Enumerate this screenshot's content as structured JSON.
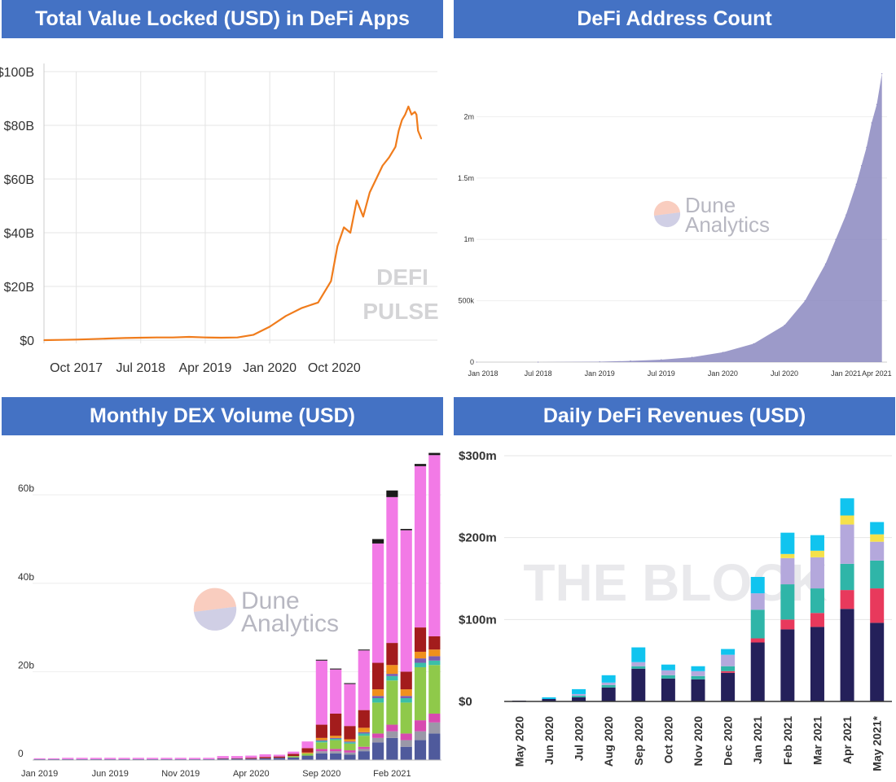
{
  "chart_data": [
    {
      "type": "line",
      "title": "Total Value Locked (USD) in DeFi Apps",
      "color": "#f07c1c",
      "watermark": "DEFI PULSE",
      "y_ticks": [
        "$0",
        "$20B",
        "$40B",
        "$60B",
        "$80B",
        "$100B"
      ],
      "ylim": [
        0,
        100
      ],
      "x_ticks": [
        "Oct 2017",
        "Jul 2018",
        "Apr 2019",
        "Jan 2020",
        "Oct 2020"
      ],
      "x": [
        0,
        0.5,
        1,
        1.5,
        2,
        2.5,
        3,
        3.5,
        4,
        4.5,
        5,
        5.5,
        6,
        6.5,
        7,
        7.5,
        8,
        8.5,
        8.9,
        9.1,
        9.3,
        9.5,
        9.7,
        9.9,
        10.1,
        10.3,
        10.5,
        10.7,
        10.9,
        11,
        11.1,
        11.2,
        11.3,
        11.4,
        11.5,
        11.55,
        11.6,
        11.7
      ],
      "values": [
        0,
        0.1,
        0.2,
        0.4,
        0.6,
        0.8,
        0.9,
        1.0,
        1.0,
        1.2,
        1.0,
        0.9,
        1.0,
        2.0,
        5.0,
        9.0,
        12.0,
        14.0,
        22.0,
        35.0,
        42.0,
        40.0,
        52.0,
        46.0,
        55.0,
        60.0,
        65.0,
        68.0,
        72.0,
        78.0,
        82.0,
        84.0,
        87.0,
        84.0,
        85.0,
        84.0,
        78.0,
        75.0
      ],
      "x_range": [
        0,
        12.2
      ]
    },
    {
      "type": "area",
      "title": "DeFi Address Count",
      "color": "#8b88bf",
      "watermark": [
        "Dune",
        "Analytics"
      ],
      "y_ticks": [
        "0",
        "500k",
        "1m",
        "1.5m",
        "2m"
      ],
      "ylim": [
        0,
        2.5
      ],
      "x_ticks": [
        "Jan 2018",
        "Jul 2018",
        "Jan 2019",
        "Jul 2019",
        "Jan 2020",
        "Jul 2020",
        "Jan 2021",
        "Apr 2021"
      ],
      "x": [
        0,
        6,
        12,
        15,
        18,
        21,
        24,
        27,
        30,
        32,
        34,
        35,
        36,
        37,
        37.5,
        38,
        38.5,
        39,
        39.5
      ],
      "values": [
        0,
        0,
        0.003,
        0.01,
        0.02,
        0.04,
        0.08,
        0.15,
        0.3,
        0.5,
        0.8,
        1.0,
        1.2,
        1.45,
        1.6,
        1.75,
        1.95,
        2.1,
        2.35
      ],
      "x_range": [
        0,
        40
      ]
    },
    {
      "type": "bar",
      "stacked": true,
      "title": "Monthly DEX Volume (USD)",
      "watermark": [
        "Dune",
        "Analytics"
      ],
      "y_ticks": [
        "0",
        "20b",
        "40b",
        "60b"
      ],
      "ylim": [
        0,
        72
      ],
      "x_ticks": [
        "Jan 2019",
        "Jun 2019",
        "Nov 2019",
        "Apr 2020",
        "Sep 2020",
        "Feb 2021"
      ],
      "categories": [
        "Jan 2019",
        "Feb 2019",
        "Mar 2019",
        "Apr 2019",
        "May 2019",
        "Jun 2019",
        "Jul 2019",
        "Aug 2019",
        "Sep 2019",
        "Oct 2019",
        "Nov 2019",
        "Dec 2019",
        "Jan 2020",
        "Feb 2020",
        "Mar 2020",
        "Apr 2020",
        "May 2020",
        "Jun 2020",
        "Jul 2020",
        "Aug 2020",
        "Sep 2020",
        "Oct 2020",
        "Nov 2020",
        "Dec 2020",
        "Jan 2021",
        "Feb 2021",
        "Mar 2021",
        "Apr 2021",
        "May 2021"
      ],
      "series": [
        {
          "name": "navy",
          "color": "#4f5a9c",
          "values": [
            0.2,
            0.2,
            0.2,
            0.2,
            0.2,
            0.2,
            0.2,
            0.2,
            0.2,
            0.2,
            0.2,
            0.2,
            0.2,
            0.3,
            0.3,
            0.3,
            0.4,
            0.5,
            0.6,
            1.0,
            1.5,
            1.5,
            1.2,
            2.0,
            4.0,
            5.0,
            3.0,
            4.5,
            6.0
          ]
        },
        {
          "name": "gray",
          "color": "#9a98a8",
          "values": [
            0,
            0,
            0,
            0,
            0,
            0,
            0,
            0,
            0,
            0,
            0,
            0,
            0,
            0,
            0,
            0,
            0,
            0,
            0,
            0,
            0.5,
            0.5,
            0.5,
            0.5,
            1.0,
            1.5,
            1.5,
            2.0,
            2.5
          ]
        },
        {
          "name": "magenta",
          "color": "#d84ab0",
          "values": [
            0,
            0,
            0,
            0,
            0,
            0,
            0,
            0,
            0,
            0,
            0,
            0,
            0,
            0,
            0,
            0,
            0,
            0,
            0,
            0,
            0.5,
            0.5,
            0.5,
            0.5,
            1.0,
            1.5,
            1.5,
            2.5,
            2.0
          ]
        },
        {
          "name": "lime",
          "color": "#8fc94a",
          "values": [
            0,
            0,
            0,
            0,
            0,
            0,
            0,
            0,
            0,
            0,
            0,
            0,
            0,
            0,
            0,
            0,
            0,
            0,
            0.3,
            0.5,
            1.5,
            2.0,
            1.5,
            2.5,
            7.0,
            10.0,
            7.0,
            12.0,
            11.0
          ]
        },
        {
          "name": "teal",
          "color": "#3bbfa8",
          "values": [
            0,
            0,
            0,
            0,
            0,
            0,
            0,
            0,
            0,
            0,
            0,
            0,
            0,
            0,
            0,
            0,
            0,
            0,
            0,
            0,
            0.3,
            0.3,
            0.3,
            0.5,
            1.0,
            1.0,
            1.0,
            1.0,
            1.0
          ]
        },
        {
          "name": "purple",
          "color": "#7a5bb0",
          "values": [
            0,
            0,
            0,
            0,
            0,
            0,
            0,
            0,
            0,
            0,
            0,
            0,
            0,
            0,
            0,
            0,
            0,
            0,
            0,
            0,
            0.2,
            0.2,
            0.2,
            0.3,
            0.5,
            0.5,
            0.5,
            1.0,
            1.0
          ]
        },
        {
          "name": "orange",
          "color": "#f0901c",
          "values": [
            0,
            0,
            0,
            0,
            0,
            0,
            0,
            0,
            0,
            0,
            0,
            0,
            0,
            0,
            0,
            0,
            0,
            0,
            0,
            0.2,
            0.5,
            0.5,
            0.5,
            1.0,
            1.5,
            2.0,
            1.5,
            1.5,
            1.5
          ]
        },
        {
          "name": "darkred",
          "color": "#a31c1c",
          "values": [
            0,
            0,
            0,
            0,
            0,
            0,
            0,
            0,
            0,
            0,
            0,
            0,
            0,
            0.1,
            0.1,
            0.2,
            0.3,
            0.3,
            0.5,
            1.0,
            3.0,
            5.0,
            3.0,
            4.0,
            6.0,
            5.0,
            4.0,
            5.5,
            3.0
          ]
        },
        {
          "name": "pink",
          "color": "#f27ae6",
          "values": [
            0.2,
            0.2,
            0.3,
            0.3,
            0.3,
            0.3,
            0.3,
            0.3,
            0.3,
            0.3,
            0.3,
            0.3,
            0.3,
            0.5,
            0.5,
            0.5,
            0.6,
            0.4,
            0.5,
            1.5,
            14.5,
            10.0,
            9.5,
            13.5,
            27.0,
            33.0,
            32.0,
            36.5,
            41.0
          ]
        },
        {
          "name": "black",
          "color": "#1a1a1a",
          "values": [
            0,
            0,
            0,
            0,
            0,
            0,
            0,
            0,
            0,
            0,
            0,
            0,
            0,
            0,
            0,
            0,
            0,
            0,
            0,
            0,
            0.2,
            0.2,
            0.2,
            0.2,
            1.0,
            1.5,
            0.3,
            0.5,
            0.5
          ]
        }
      ]
    },
    {
      "type": "bar",
      "stacked": true,
      "title": "Daily DeFi Revenues (USD)",
      "watermark": "THE BLOCK",
      "y_ticks": [
        "$0",
        "$100m",
        "$200m",
        "$300m"
      ],
      "ylim": [
        0,
        300
      ],
      "categories": [
        "May 2020",
        "Jun 2020",
        "Jul 2020",
        "Aug 2020",
        "Sep 2020",
        "Oct 2020",
        "Nov 2020",
        "Dec 2020",
        "Jan 2021",
        "Feb 2021",
        "Mar 2021",
        "Apr 2021",
        "May 2021*"
      ],
      "series": [
        {
          "name": "navy",
          "color": "#24205a",
          "values": [
            1,
            3,
            5,
            17,
            40,
            28,
            27,
            35,
            72,
            88,
            91,
            113,
            96
          ]
        },
        {
          "name": "red",
          "color": "#e8395c",
          "values": [
            0,
            0,
            0,
            0,
            0,
            0,
            0,
            2,
            5,
            12,
            17,
            23,
            42
          ]
        },
        {
          "name": "teal",
          "color": "#2fb5a8",
          "values": [
            0,
            0,
            2,
            3,
            3,
            4,
            4,
            6,
            35,
            43,
            30,
            32,
            34
          ]
        },
        {
          "name": "lavender",
          "color": "#b4a8dc",
          "values": [
            0,
            0,
            2,
            3,
            5,
            6,
            6,
            14,
            20,
            32,
            38,
            48,
            23
          ]
        },
        {
          "name": "yellow",
          "color": "#f5e14a",
          "values": [
            0,
            0,
            0,
            0,
            0,
            0,
            0,
            0,
            0,
            5,
            8,
            11,
            9
          ]
        },
        {
          "name": "cyan",
          "color": "#10c4ef",
          "values": [
            0,
            2,
            6,
            9,
            18,
            7,
            6,
            7,
            20,
            26,
            19,
            21,
            15
          ]
        }
      ]
    }
  ]
}
